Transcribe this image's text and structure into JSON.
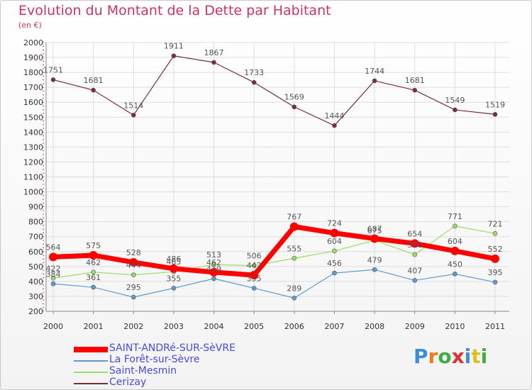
{
  "chart_data": {
    "type": "line",
    "title": "Evolution du Montant de la Dette par Habitant",
    "subtitle": "(en €)",
    "x": [
      "2000",
      "2001",
      "2002",
      "2003",
      "2004",
      "2005",
      "2006",
      "2007",
      "2008",
      "2009",
      "2010",
      "2011"
    ],
    "ylim": [
      200,
      2000
    ],
    "yticks": [
      "200",
      "300",
      "400",
      "500",
      "600",
      "700",
      "800",
      "900",
      "1000",
      "1100",
      "1200",
      "1300",
      "1400",
      "1500",
      "1600",
      "1700",
      "1800",
      "1900",
      "2000"
    ],
    "grid": true,
    "legend_position": "bottom-left",
    "series": [
      {
        "name": "SAINT-ANDRé-SUR-SèVRE",
        "color": "#ff0000",
        "values": [
          564,
          575,
          528,
          486,
          462,
          442,
          767,
          724,
          687,
          654,
          604,
          552
        ]
      },
      {
        "name": "La Forêt-sur-Sèvre",
        "color": "#5f9bd0",
        "values": [
          384,
          361,
          295,
          355,
          419,
          355,
          289,
          456,
          479,
          407,
          450,
          395
        ]
      },
      {
        "name": "Saint-Mesmin",
        "color": "#99dd66",
        "values": [
          422,
          462,
          444,
          465,
          513,
          506,
          555,
          604,
          675,
          580,
          771,
          721
        ]
      },
      {
        "name": "Cerizay",
        "color": "#7a2e3a",
        "values": [
          1751,
          1681,
          1514,
          1911,
          1867,
          1733,
          1569,
          1444,
          1744,
          1681,
          1549,
          1519
        ]
      }
    ]
  },
  "branding": {
    "logo_text": "Proxiti",
    "letter_colors": [
      "#3a8fd8",
      "#f07a1e",
      "#3fae3f",
      "#e03030",
      "#3a8fd8",
      "#e0c020",
      "#3fae3f"
    ]
  }
}
